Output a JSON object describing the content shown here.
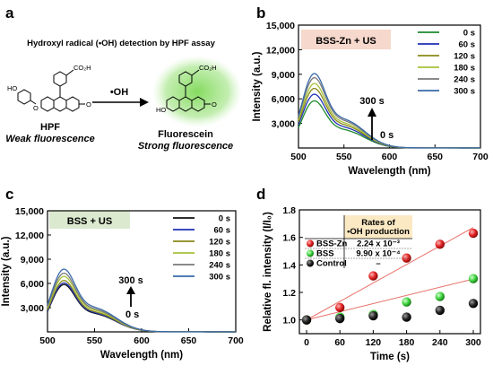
{
  "panels": {
    "a": {
      "label": "a",
      "title": "Hydroxyl radical (•OH) detection by HPF assay",
      "left_name": "HPF",
      "left_sub": "Weak fluorescence",
      "arrow_label": "•OH",
      "right_name": "Fluorescein",
      "right_sub": "Strong fluorescence",
      "group_labels": {
        "ho": "HO",
        "co2h": "CO₂H",
        "o": "O"
      },
      "colors": {
        "strong": "#2db34a",
        "glow": "#7ed957"
      }
    },
    "b": {
      "label": "b"
    },
    "c": {
      "label": "c"
    },
    "d": {
      "label": "d"
    }
  },
  "chart_data": [
    {
      "id": "b",
      "type": "line",
      "inset_title": "BSS-Zn + US",
      "inset_color": "#f6d8cc",
      "xlabel": "Wavelength (nm)",
      "ylabel": "Intensity (a.u.)",
      "xlim": [
        500,
        700
      ],
      "ylim": [
        0,
        15000
      ],
      "xticks": [
        500,
        550,
        600,
        650,
        700
      ],
      "yticks": [
        3000,
        6000,
        9000,
        12000,
        15000
      ],
      "ytick_labels": [
        "3,000",
        "6,000",
        "9,000",
        "12,000",
        "15,000"
      ],
      "annotation_top": "300 s",
      "annotation_bottom": "0 s",
      "legend_position": "top-right",
      "series": [
        {
          "name": "0 s",
          "color": "#1d8a2f",
          "peak": 5700
        },
        {
          "name": "60 s",
          "color": "#1f2fb4",
          "peak": 6500
        },
        {
          "name": "120 s",
          "color": "#8a8a1a",
          "peak": 7200
        },
        {
          "name": "180 s",
          "color": "#a6c23a",
          "peak": 7800
        },
        {
          "name": "240 s",
          "color": "#7a7a7a",
          "peak": 8500
        },
        {
          "name": "300 s",
          "color": "#3a6aa8",
          "peak": 9000
        }
      ]
    },
    {
      "id": "c",
      "type": "line",
      "inset_title": "BSS + US",
      "inset_color": "#dbe9cf",
      "xlabel": "Wavelength (nm)",
      "ylabel": "Intensity (a.u.)",
      "xlim": [
        500,
        700
      ],
      "ylim": [
        0,
        15000
      ],
      "xticks": [
        500,
        550,
        600,
        650,
        700
      ],
      "yticks": [
        3000,
        6000,
        9000,
        12000,
        15000
      ],
      "ytick_labels": [
        "3,000",
        "6,000",
        "9,000",
        "12,000",
        "15,000"
      ],
      "annotation_top": "300 s",
      "annotation_bottom": "0 s",
      "legend_position": "top-right",
      "series": [
        {
          "name": "0 s",
          "color": "#111111",
          "peak": 5800
        },
        {
          "name": "60 s",
          "color": "#1f2fb4",
          "peak": 6000
        },
        {
          "name": "120 s",
          "color": "#8a8a1a",
          "peak": 6300
        },
        {
          "name": "180 s",
          "color": "#a6c23a",
          "peak": 6800
        },
        {
          "name": "240 s",
          "color": "#7a7a7a",
          "peak": 7200
        },
        {
          "name": "300 s",
          "color": "#3a6aa8",
          "peak": 7700
        }
      ]
    },
    {
      "id": "d",
      "type": "scatter",
      "xlabel": "Time (s)",
      "ylabel": "Relative fl. intensity (I/I₀)",
      "xlim": [
        0,
        300
      ],
      "ylim": [
        0.9,
        1.8
      ],
      "xticks": [
        0,
        60,
        120,
        180,
        240,
        300
      ],
      "yticks": [
        1.0,
        1.2,
        1.4,
        1.6,
        1.8
      ],
      "table": {
        "header_line1": "Rates of",
        "header_line2": "•OH production",
        "header_color": "#fbe9c4",
        "rows": [
          {
            "name": "BSS-Zn",
            "rate": "2.24 x 10⁻³"
          },
          {
            "name": "BSS",
            "rate": "9.90 x 10⁻⁴"
          },
          {
            "name": "Control",
            "rate": "–"
          }
        ]
      },
      "fit_color": "#e8706a",
      "series": [
        {
          "name": "BSS-Zn",
          "color": "#e02020",
          "x": [
            0,
            60,
            120,
            180,
            240,
            300
          ],
          "y": [
            1.0,
            1.09,
            1.32,
            1.45,
            1.55,
            1.63
          ],
          "fit": [
            1.0,
            1.672
          ]
        },
        {
          "name": "BSS",
          "color": "#3ad13a",
          "x": [
            0,
            60,
            120,
            180,
            240,
            300
          ],
          "y": [
            1.0,
            1.02,
            1.04,
            1.13,
            1.17,
            1.3
          ],
          "fit": [
            1.0,
            1.297
          ]
        },
        {
          "name": "Control",
          "color": "#111111",
          "x": [
            0,
            60,
            120,
            180,
            240,
            300
          ],
          "y": [
            1.0,
            1.01,
            1.03,
            1.02,
            1.07,
            1.12
          ]
        }
      ]
    }
  ]
}
